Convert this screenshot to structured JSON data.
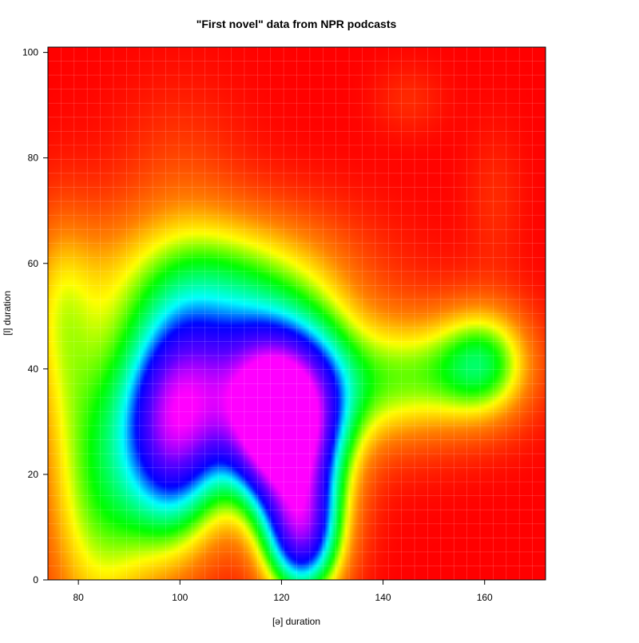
{
  "chart_data": {
    "type": "heatmap",
    "title": "\"First novel\" data from NPR podcasts",
    "xlabel": "[ə] duration",
    "ylabel": "[l] duration",
    "xlim": [
      74,
      172
    ],
    "ylim": [
      0,
      101
    ],
    "x_ticks": [
      "80",
      "100",
      "120",
      "140",
      "160"
    ],
    "y_ticks": [
      "0",
      "20",
      "40",
      "60",
      "80",
      "100"
    ],
    "colormap": "rainbow (red = low density, magenta = high density)",
    "grid": true,
    "legend": "none",
    "density_peaks": [
      {
        "x": 119,
        "y": 29,
        "level": 1.0
      },
      {
        "x": 100,
        "y": 28,
        "level": 0.78
      },
      {
        "x": 125,
        "y": 8,
        "level": 0.82
      },
      {
        "x": 160,
        "y": 40,
        "level": 0.42
      }
    ],
    "colors": {
      "low": "#ff0000",
      "orange": "#ff8000",
      "yellow": "#ffff00",
      "green": "#00ff00",
      "cyan": "#00ffff",
      "blue": "#0000ff",
      "high": "#ff00ff"
    }
  }
}
